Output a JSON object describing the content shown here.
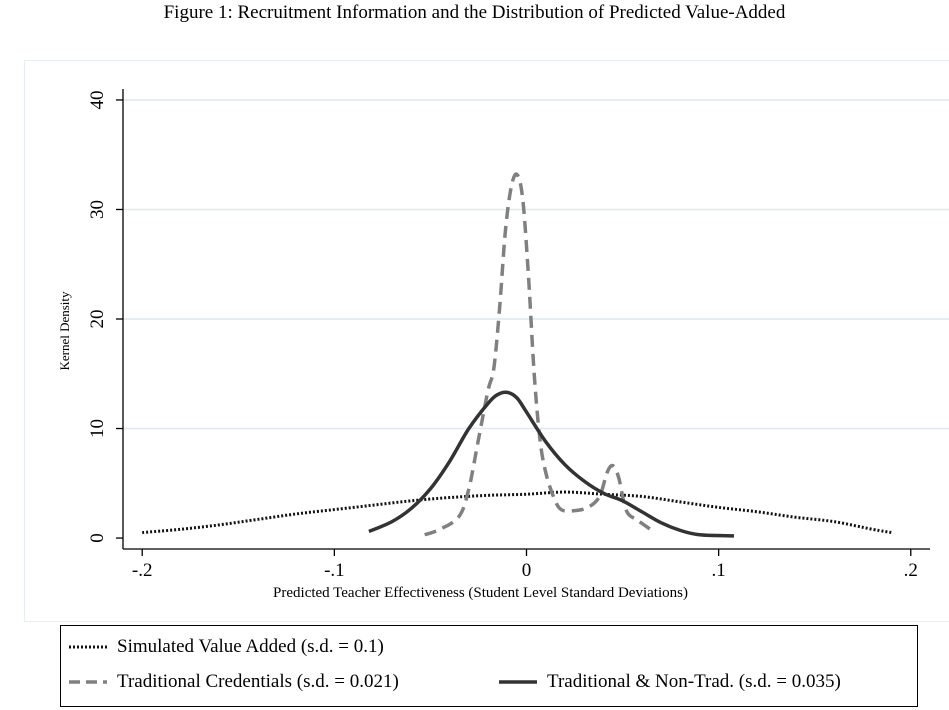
{
  "figure_title": "Figure 1: Recruitment Information and the Distribution of Predicted Value-Added",
  "chart_data": {
    "type": "line",
    "xlabel": "Predicted Teacher Effectiveness (Student Level Standard Deviations)",
    "ylabel": "Kernel Density",
    "xlim": [
      -0.21,
      0.21
    ],
    "ylim": [
      -1,
      41
    ],
    "x_ticks": [
      -0.2,
      -0.1,
      0,
      0.1,
      0.2
    ],
    "x_tick_labels": [
      "-.2",
      "-.1",
      "0",
      ".1",
      ".2"
    ],
    "y_ticks": [
      0,
      10,
      20,
      30,
      40
    ],
    "y_tick_labels": [
      "0",
      "10",
      "20",
      "30",
      "40"
    ],
    "grid": "horizontal",
    "legend_placement": "bottom",
    "series": [
      {
        "name": "Simulated Value Added (s.d. = 0.1)",
        "style": "dotted",
        "color": "#111111",
        "points": [
          [
            -0.2,
            0.5
          ],
          [
            -0.18,
            0.8
          ],
          [
            -0.16,
            1.2
          ],
          [
            -0.14,
            1.7
          ],
          [
            -0.12,
            2.2
          ],
          [
            -0.1,
            2.6
          ],
          [
            -0.08,
            3.0
          ],
          [
            -0.06,
            3.4
          ],
          [
            -0.04,
            3.7
          ],
          [
            -0.02,
            3.9
          ],
          [
            0.0,
            4.0
          ],
          [
            0.02,
            4.2
          ],
          [
            0.04,
            4.0
          ],
          [
            0.06,
            3.8
          ],
          [
            0.08,
            3.3
          ],
          [
            0.1,
            2.8
          ],
          [
            0.12,
            2.4
          ],
          [
            0.14,
            1.9
          ],
          [
            0.16,
            1.5
          ],
          [
            0.18,
            0.8
          ],
          [
            0.19,
            0.5
          ]
        ]
      },
      {
        "name": "Traditional Credentials (s.d. = 0.021)",
        "style": "dashed",
        "color": "#808080",
        "points": [
          [
            -0.053,
            0.3
          ],
          [
            -0.045,
            0.8
          ],
          [
            -0.035,
            2.0
          ],
          [
            -0.03,
            4.5
          ],
          [
            -0.025,
            9.0
          ],
          [
            -0.02,
            13.5
          ],
          [
            -0.017,
            15.5
          ],
          [
            -0.014,
            21.0
          ],
          [
            -0.011,
            28.0
          ],
          [
            -0.008,
            32.0
          ],
          [
            -0.005,
            33.2
          ],
          [
            -0.002,
            31.0
          ],
          [
            0.001,
            24.0
          ],
          [
            0.004,
            15.0
          ],
          [
            0.007,
            9.0
          ],
          [
            0.01,
            6.0
          ],
          [
            0.014,
            3.8
          ],
          [
            0.018,
            2.6
          ],
          [
            0.025,
            2.5
          ],
          [
            0.032,
            2.8
          ],
          [
            0.038,
            3.8
          ],
          [
            0.042,
            6.0
          ],
          [
            0.045,
            6.6
          ],
          [
            0.048,
            5.5
          ],
          [
            0.052,
            2.5
          ],
          [
            0.058,
            1.6
          ],
          [
            0.067,
            0.5
          ]
        ]
      },
      {
        "name": "Traditional & Non-Trad. (s.d. = 0.035)",
        "style": "solid",
        "color": "#333333",
        "points": [
          [
            -0.082,
            0.6
          ],
          [
            -0.07,
            1.5
          ],
          [
            -0.06,
            2.7
          ],
          [
            -0.05,
            4.5
          ],
          [
            -0.04,
            7.0
          ],
          [
            -0.03,
            10.0
          ],
          [
            -0.02,
            12.3
          ],
          [
            -0.015,
            13.1
          ],
          [
            -0.01,
            13.3
          ],
          [
            -0.005,
            12.8
          ],
          [
            0.0,
            11.5
          ],
          [
            0.01,
            8.8
          ],
          [
            0.02,
            6.7
          ],
          [
            0.03,
            5.2
          ],
          [
            0.04,
            4.1
          ],
          [
            0.05,
            3.4
          ],
          [
            0.06,
            2.4
          ],
          [
            0.07,
            1.4
          ],
          [
            0.08,
            0.7
          ],
          [
            0.09,
            0.3
          ],
          [
            0.108,
            0.2
          ]
        ]
      }
    ]
  }
}
